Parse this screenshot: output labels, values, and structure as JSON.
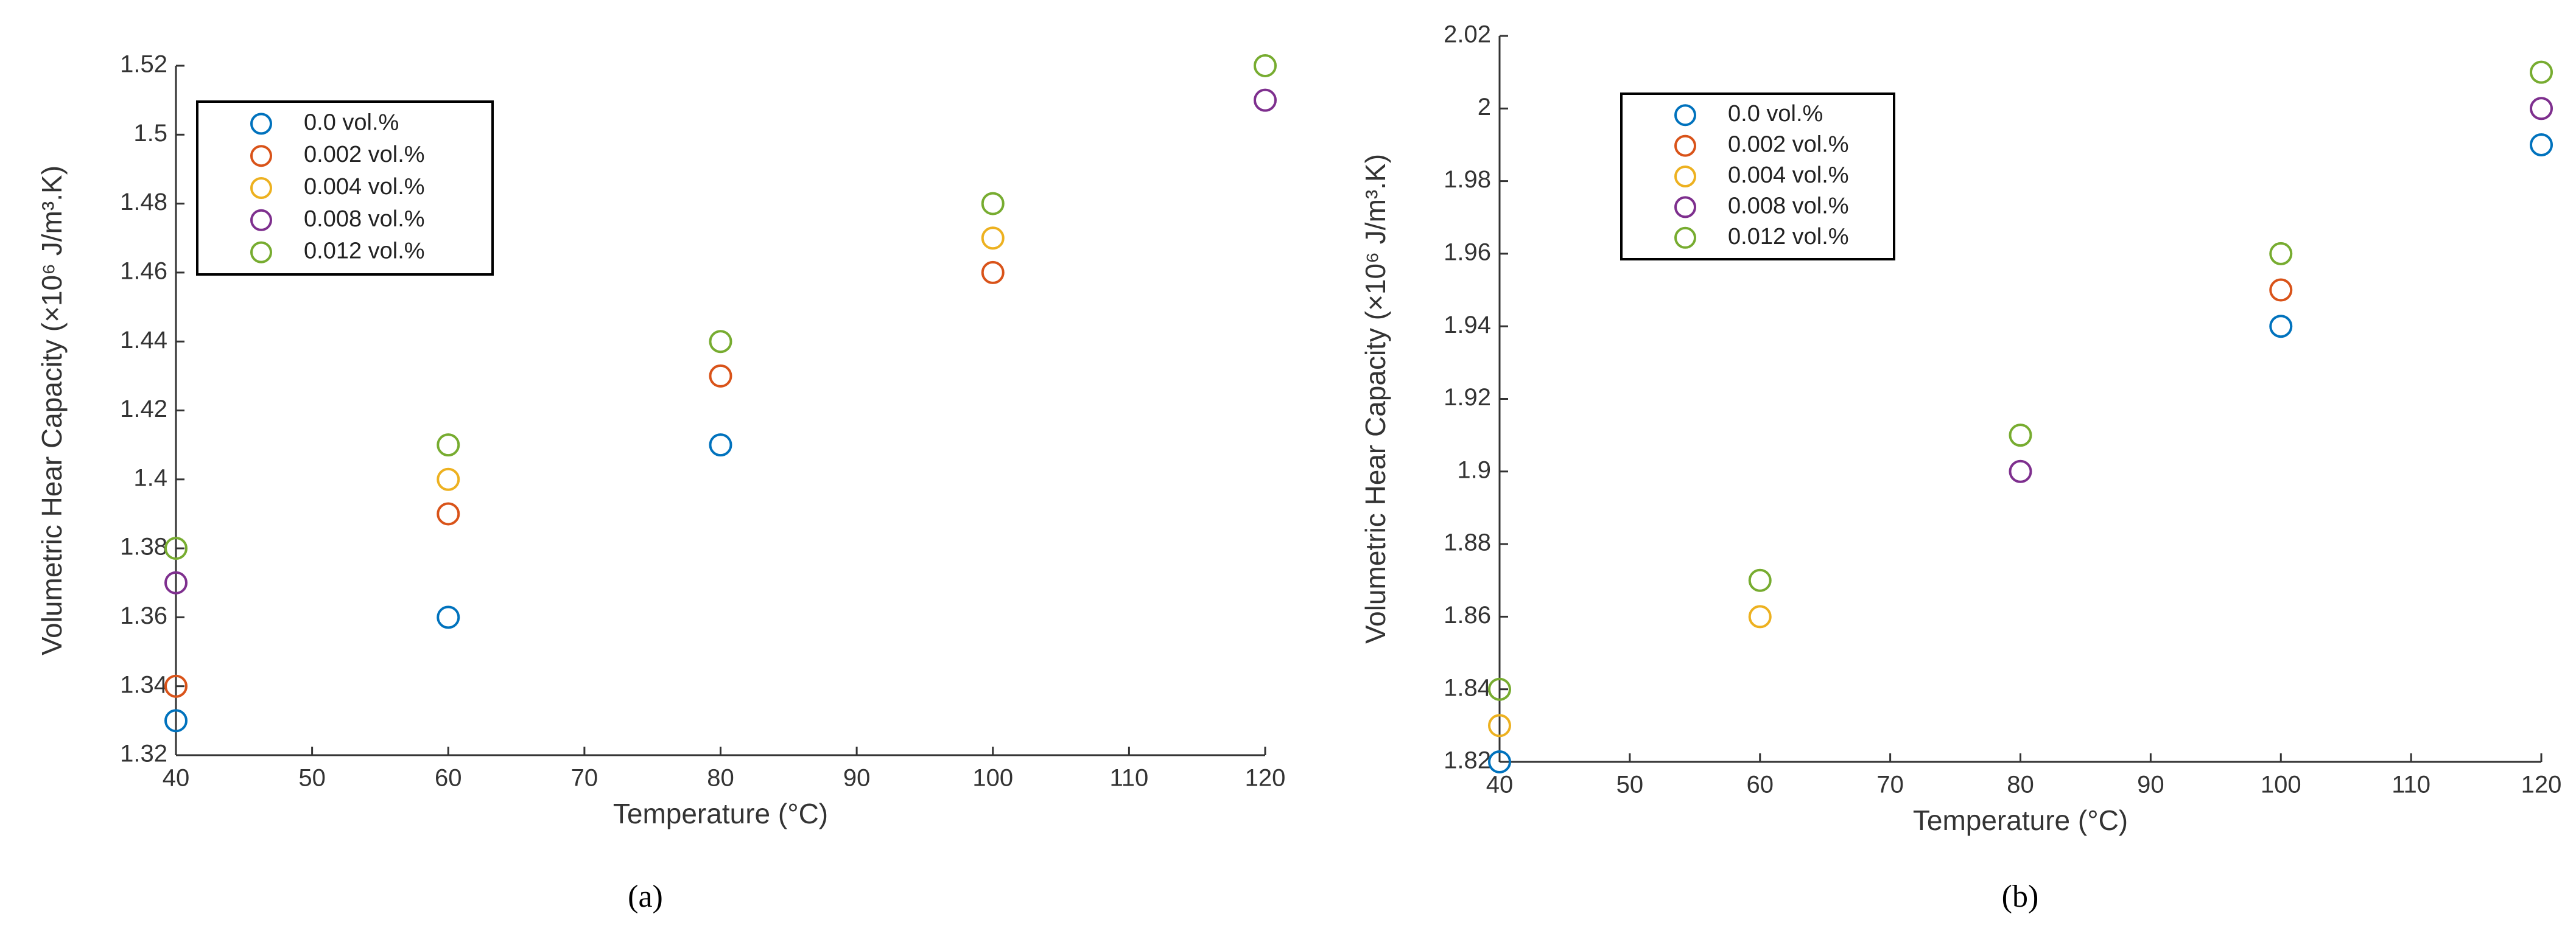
{
  "chart_data": [
    {
      "type": "scatter",
      "caption": "(a)",
      "x_label": "Temperature (°C)",
      "y_label": "Volumetric Hear Capacity (×10⁶ J/m³.K)",
      "x": [
        40,
        60,
        80,
        100,
        120
      ],
      "xlim": [
        40,
        120
      ],
      "xticks": [
        40,
        50,
        60,
        70,
        80,
        90,
        100,
        110,
        120
      ],
      "ylim": [
        1.32,
        1.52
      ],
      "yticks": [
        1.32,
        1.34,
        1.36,
        1.38,
        1.4,
        1.42,
        1.44,
        1.46,
        1.48,
        1.5,
        1.52
      ],
      "legend": "upper left",
      "series": [
        {
          "name": "0.0 vol.%",
          "color": "#0072bd",
          "values": [
            1.33,
            1.36,
            1.41,
            null,
            null
          ]
        },
        {
          "name": "0.002 vol.%",
          "color": "#d95319",
          "values": [
            1.34,
            1.39,
            1.43,
            1.46,
            null
          ]
        },
        {
          "name": "0.004 vol.%",
          "color": "#edb120",
          "values": [
            null,
            1.4,
            null,
            1.47,
            null
          ]
        },
        {
          "name": "0.008 vol.%",
          "color": "#7e2f8e",
          "values": [
            1.37,
            null,
            null,
            null,
            1.51
          ]
        },
        {
          "name": "0.012 vol.%",
          "color": "#77ac30",
          "values": [
            1.38,
            1.41,
            1.44,
            1.48,
            1.52
          ]
        }
      ]
    },
    {
      "type": "scatter",
      "caption": "(b)",
      "x_label": "Temperature (°C)",
      "y_label": "Volumetric Hear Capacity (×10⁶ J/m³.K)",
      "x": [
        40,
        60,
        80,
        100,
        120
      ],
      "xlim": [
        40,
        120
      ],
      "xticks": [
        40,
        50,
        60,
        70,
        80,
        90,
        100,
        110,
        120
      ],
      "ylim": [
        1.82,
        2.02
      ],
      "yticks": [
        1.82,
        1.84,
        1.86,
        1.88,
        1.9,
        1.92,
        1.94,
        1.96,
        1.98,
        2,
        2.02
      ],
      "legend": "upper left",
      "series": [
        {
          "name": "0.0 vol.%",
          "color": "#0072bd",
          "values": [
            1.82,
            null,
            null,
            1.94,
            1.99
          ]
        },
        {
          "name": "0.002 vol.%",
          "color": "#d95319",
          "values": [
            null,
            null,
            null,
            1.95,
            null
          ]
        },
        {
          "name": "0.004 vol.%",
          "color": "#edb120",
          "values": [
            1.83,
            1.86,
            null,
            null,
            null
          ]
        },
        {
          "name": "0.008 vol.%",
          "color": "#7e2f8e",
          "values": [
            null,
            null,
            1.9,
            null,
            2
          ]
        },
        {
          "name": "0.012 vol.%",
          "color": "#77ac30",
          "values": [
            1.84,
            1.87,
            1.91,
            1.96,
            2.01
          ]
        }
      ]
    }
  ]
}
